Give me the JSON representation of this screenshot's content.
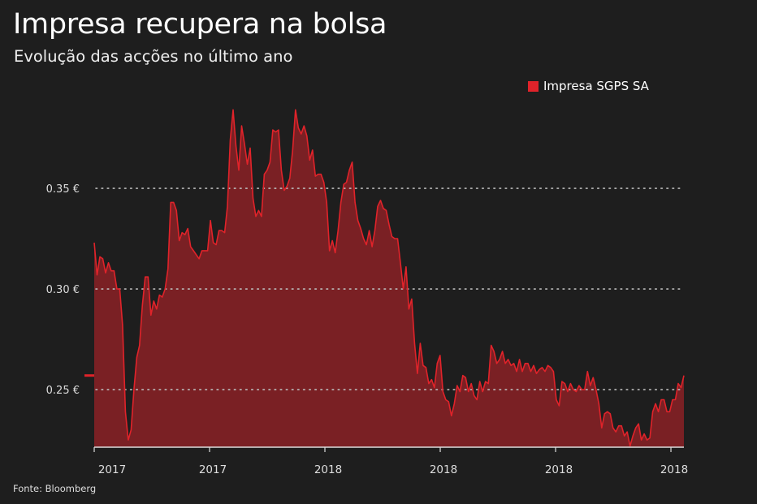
{
  "title": "Impresa recupera na bolsa",
  "subtitle": "Evolução das acções no último ano",
  "source": "Fonte: Bloomberg",
  "colors": {
    "background": "#1e1e1e",
    "line": "#e0232a",
    "area": "#7a2024",
    "grid": "#bbbbbb"
  },
  "chart_data": {
    "type": "area",
    "title": "Impresa recupera na bolsa",
    "subtitle": "Evolução das acções no último ano",
    "legend": {
      "entries": [
        "Impresa SGPS SA"
      ],
      "placement": "top-right"
    },
    "series": [
      {
        "name": "Impresa SGPS SA",
        "values": [
          0.323,
          0.307,
          0.316,
          0.315,
          0.308,
          0.313,
          0.309,
          0.309,
          0.3,
          0.3,
          0.282,
          0.239,
          0.225,
          0.23,
          0.25,
          0.266,
          0.272,
          0.292,
          0.306,
          0.306,
          0.287,
          0.294,
          0.29,
          0.297,
          0.296,
          0.3,
          0.31,
          0.343,
          0.343,
          0.339,
          0.324,
          0.328,
          0.327,
          0.33,
          0.321,
          0.319,
          0.317,
          0.315,
          0.319,
          0.319,
          0.319,
          0.334,
          0.323,
          0.322,
          0.329,
          0.329,
          0.328,
          0.341,
          0.374,
          0.389,
          0.371,
          0.359,
          0.381,
          0.372,
          0.362,
          0.37,
          0.345,
          0.336,
          0.339,
          0.336,
          0.357,
          0.359,
          0.363,
          0.379,
          0.378,
          0.379,
          0.359,
          0.349,
          0.351,
          0.355,
          0.369,
          0.389,
          0.38,
          0.377,
          0.381,
          0.376,
          0.364,
          0.369,
          0.356,
          0.357,
          0.357,
          0.353,
          0.343,
          0.319,
          0.324,
          0.318,
          0.329,
          0.343,
          0.352,
          0.353,
          0.359,
          0.363,
          0.343,
          0.334,
          0.33,
          0.325,
          0.322,
          0.329,
          0.321,
          0.329,
          0.341,
          0.344,
          0.34,
          0.339,
          0.332,
          0.326,
          0.325,
          0.325,
          0.313,
          0.3,
          0.311,
          0.29,
          0.295,
          0.273,
          0.258,
          0.273,
          0.262,
          0.261,
          0.253,
          0.255,
          0.251,
          0.263,
          0.267,
          0.249,
          0.245,
          0.244,
          0.237,
          0.243,
          0.252,
          0.249,
          0.257,
          0.256,
          0.249,
          0.253,
          0.247,
          0.245,
          0.254,
          0.249,
          0.254,
          0.253,
          0.272,
          0.269,
          0.263,
          0.265,
          0.269,
          0.263,
          0.265,
          0.262,
          0.263,
          0.259,
          0.265,
          0.259,
          0.263,
          0.263,
          0.259,
          0.262,
          0.258,
          0.26,
          0.261,
          0.259,
          0.262,
          0.261,
          0.259,
          0.245,
          0.242,
          0.254,
          0.253,
          0.249,
          0.253,
          0.25,
          0.249,
          0.252,
          0.25,
          0.25,
          0.259,
          0.252,
          0.256,
          0.25,
          0.243,
          0.231,
          0.238,
          0.239,
          0.238,
          0.231,
          0.229,
          0.232,
          0.232,
          0.227,
          0.229,
          0.222,
          0.227,
          0.231,
          0.233,
          0.225,
          0.228,
          0.225,
          0.226,
          0.239,
          0.243,
          0.239,
          0.245,
          0.245,
          0.239,
          0.239,
          0.245,
          0.245,
          0.253,
          0.251,
          0.257
        ]
      }
    ],
    "yticks": [
      0.25,
      0.3,
      0.35
    ],
    "ytick_labels": [
      "0.25 €",
      "0.30 €",
      "0.35 €"
    ],
    "xtick_labels": [
      "2017",
      "2017",
      "2018",
      "2018",
      "2018",
      "2018"
    ],
    "ylim": [
      0.2214,
      0.395
    ],
    "grid": "horizontal dotted",
    "last_value_marker": true,
    "xlabel": "",
    "ylabel": ""
  }
}
